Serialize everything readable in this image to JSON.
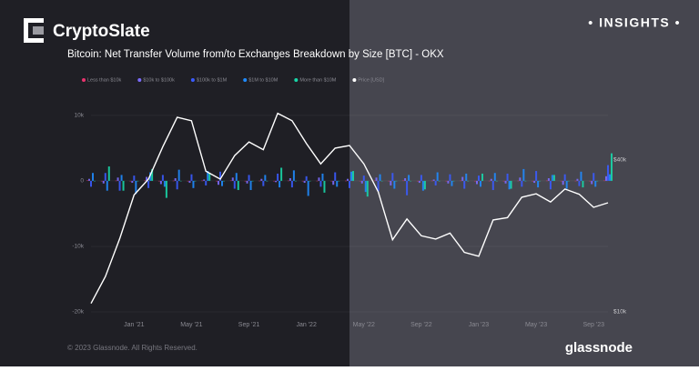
{
  "header": {
    "brand": "CryptoSlate",
    "badge": "• INSIGHTS •"
  },
  "footer": {
    "copyright": "© 2023 Glassnode. All Rights Reserved.",
    "watermark": "glassnode"
  },
  "chart_data": {
    "type": "bar-line",
    "title": "Bitcoin: Net Transfer Volume from/to Exchanges Breakdown by Size [BTC] - OKX",
    "x": [
      "2020-10",
      "2020-11",
      "2020-12",
      "2021-01",
      "2021-02",
      "2021-03",
      "2021-04",
      "2021-05",
      "2021-06",
      "2021-07",
      "2021-08",
      "2021-09",
      "2021-10",
      "2021-11",
      "2021-12",
      "2022-01",
      "2022-02",
      "2022-03",
      "2022-04",
      "2022-05",
      "2022-06",
      "2022-07",
      "2022-08",
      "2022-09",
      "2022-10",
      "2022-11",
      "2022-12",
      "2023-01",
      "2023-02",
      "2023-03",
      "2023-04",
      "2023-05",
      "2023-06",
      "2023-07",
      "2023-08",
      "2023-09",
      "2023-10"
    ],
    "xlim": [
      "2020-10",
      "2023-10"
    ],
    "xticks": [
      {
        "value": "2021-01",
        "label": "Jan '21"
      },
      {
        "value": "2021-05",
        "label": "May '21"
      },
      {
        "value": "2021-09",
        "label": "Sep '21"
      },
      {
        "value": "2022-01",
        "label": "Jan '22"
      },
      {
        "value": "2022-05",
        "label": "May '22"
      },
      {
        "value": "2022-09",
        "label": "Sep '22"
      },
      {
        "value": "2023-01",
        "label": "Jan '23"
      },
      {
        "value": "2023-05",
        "label": "May '23"
      },
      {
        "value": "2023-09",
        "label": "Sep '23"
      }
    ],
    "ylim": [
      -20000,
      14000
    ],
    "yticks": [
      {
        "value": 10000,
        "label": "10k"
      },
      0,
      {
        "value": -10000,
        "label": "-10k"
      },
      {
        "value": -20000,
        "label": "-20k"
      }
    ],
    "y2lim": [
      10000,
      76000
    ],
    "y2ticks": [
      {
        "value": 10000,
        "label": "$10k"
      },
      {
        "value": 40000,
        "label": "$40k"
      }
    ],
    "y2_log": true,
    "series": [
      {
        "name": "Less than $10k",
        "color": "#e8336d",
        "values": [
          50,
          -40,
          30,
          -60,
          40,
          -30,
          20,
          -50,
          30,
          -20,
          40,
          -30,
          20,
          -40,
          30,
          -20,
          10,
          -30,
          20,
          -40,
          30,
          -20,
          40,
          -30,
          20,
          -10,
          30,
          -20,
          10,
          -30,
          20,
          -40,
          30,
          -20,
          10,
          -30,
          40
        ]
      },
      {
        "name": "$10k to $100k",
        "color": "#7b6cff",
        "values": [
          300,
          -400,
          500,
          -300,
          600,
          -500,
          400,
          -300,
          200,
          -600,
          500,
          -400,
          300,
          -200,
          400,
          -300,
          500,
          -600,
          300,
          -400,
          500,
          -700,
          400,
          -300,
          200,
          -400,
          600,
          -500,
          300,
          -400,
          500,
          -300,
          400,
          -600,
          300,
          -500,
          700
        ]
      },
      {
        "name": "$100k to $1M",
        "color": "#3a5bff",
        "values": [
          -900,
          1200,
          -1500,
          800,
          -1100,
          900,
          -1300,
          1000,
          -700,
          1400,
          -1200,
          900,
          -800,
          1100,
          -1000,
          700,
          -900,
          1300,
          -1100,
          800,
          -1600,
          1200,
          -2200,
          900,
          -700,
          1000,
          -1200,
          800,
          -1400,
          1100,
          -900,
          1500,
          -1300,
          1000,
          -800,
          1200,
          2400
        ]
      },
      {
        "name": "$1M to $10M",
        "color": "#1f8bff",
        "values": [
          1200,
          -1500,
          900,
          -2000,
          1300,
          -900,
          1700,
          -1100,
          1500,
          -800,
          1200,
          -1400,
          900,
          -1000,
          1600,
          -2300,
          1100,
          -900,
          1400,
          -1700,
          1000,
          -1200,
          900,
          -1500,
          1300,
          -800,
          1100,
          -900,
          1200,
          -1300,
          1800,
          -1000,
          900,
          -1200,
          1400,
          -900,
          1000
        ]
      },
      {
        "name": "More than $10M",
        "color": "#18d6a8",
        "values": [
          0,
          2200,
          -1500,
          0,
          1800,
          -2600,
          0,
          0,
          1200,
          0,
          -1400,
          0,
          0,
          2000,
          0,
          0,
          -1800,
          0,
          1500,
          -2400,
          0,
          0,
          0,
          -1300,
          0,
          0,
          0,
          1100,
          0,
          -1200,
          0,
          0,
          900,
          0,
          -1000,
          0,
          4200
        ]
      },
      {
        "name": "Price [USD]",
        "color": "#ffffff",
        "axis": "y2",
        "values": [
          10800,
          13800,
          19500,
          29000,
          33500,
          45000,
          58800,
          57000,
          36000,
          33500,
          41500,
          47000,
          43800,
          61000,
          57000,
          46300,
          38500,
          44400,
          45500,
          38500,
          29800,
          19300,
          23300,
          20000,
          19400,
          20500,
          17200,
          16600,
          23100,
          23600,
          28400,
          29300,
          27200,
          30600,
          29200,
          25900,
          27000
        ]
      }
    ]
  }
}
